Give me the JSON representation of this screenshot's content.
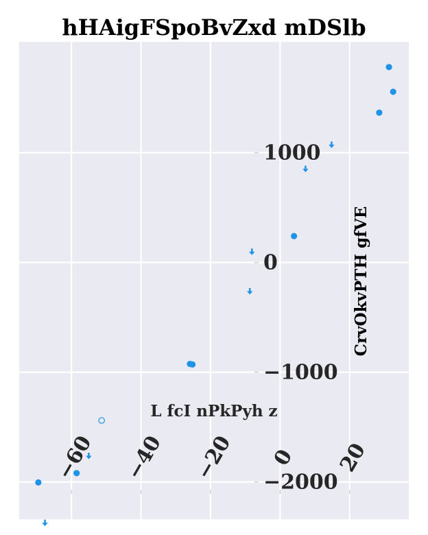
{
  "chart_data": {
    "type": "scatter",
    "title": "hHAigFSpoBvZxd  mDSlb",
    "xlabel": "L fcI nPkPyh z",
    "ylabel": "CrvOkvPTH gfVE",
    "xlim": [
      -75,
      37
    ],
    "ylim": [
      -2340,
      2010
    ],
    "grid": true,
    "x_ticks": [
      -60,
      -40,
      -20,
      0,
      20
    ],
    "x_tick_labels": [
      "−60",
      "−40",
      "−20",
      "0",
      "20"
    ],
    "y_ticks": [
      -2000,
      -1000,
      0,
      1000
    ],
    "y_tick_labels": [
      "−2000",
      "−1000",
      "0",
      "1000"
    ],
    "colors": {
      "marker": "#1f93e6",
      "background": "#eaeaf2",
      "grid": "#ffffff"
    },
    "points": [
      {
        "x": 31.3,
        "y": 1780,
        "marker": "circle"
      },
      {
        "x": 32.5,
        "y": 1555,
        "marker": "circle"
      },
      {
        "x": 28.5,
        "y": 1365,
        "marker": "circle"
      },
      {
        "x": 14.8,
        "y": 1070,
        "marker": "arrow"
      },
      {
        "x": 7.3,
        "y": 850,
        "marker": "arrow"
      },
      {
        "x": 4.0,
        "y": 240,
        "marker": "circle"
      },
      {
        "x": -8.1,
        "y": 95,
        "marker": "arrow"
      },
      {
        "x": -8.7,
        "y": -265,
        "marker": "arrow"
      },
      {
        "x": -25.9,
        "y": -925,
        "marker": "circle"
      },
      {
        "x": -25.2,
        "y": -930,
        "marker": "circle"
      },
      {
        "x": -51.3,
        "y": -1440,
        "marker": "hollow-circle"
      },
      {
        "x": -55.0,
        "y": -1765,
        "marker": "arrow"
      },
      {
        "x": -58.5,
        "y": -1920,
        "marker": "circle"
      },
      {
        "x": -69.5,
        "y": -2005,
        "marker": "circle"
      },
      {
        "x": -67.6,
        "y": -2375,
        "marker": "arrow"
      }
    ]
  }
}
